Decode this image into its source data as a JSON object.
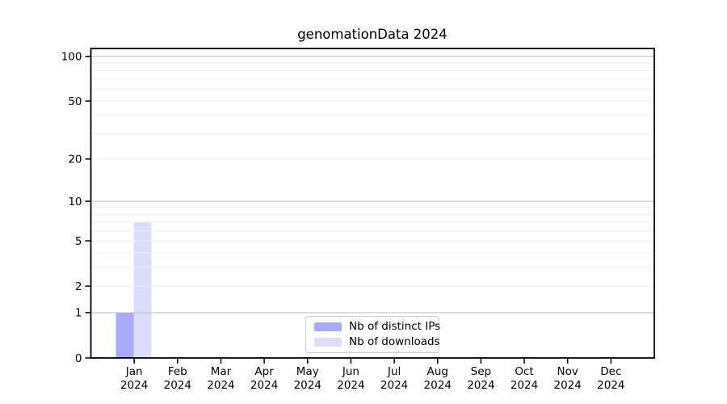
{
  "chart_data": {
    "type": "bar",
    "title": "genomationData 2024",
    "x": {
      "months": [
        "Jan",
        "Feb",
        "Mar",
        "Apr",
        "May",
        "Jun",
        "Jul",
        "Aug",
        "Sep",
        "Oct",
        "Nov",
        "Dec"
      ],
      "year": "2024"
    },
    "y_axis": {
      "scale": "log10(1+v)",
      "tick_values": [
        0,
        1,
        2,
        5,
        10,
        20,
        50,
        100
      ],
      "major_gridlines": [
        1,
        10,
        100
      ],
      "minor_gridlines": [
        2,
        3,
        4,
        5,
        6,
        7,
        8,
        9,
        20,
        30,
        40,
        50,
        60,
        70,
        80,
        90
      ],
      "ylim": [
        0,
        113
      ]
    },
    "series": [
      {
        "name": "Nb of distinct IPs",
        "color": "#a9aaf8",
        "values": [
          1,
          0,
          0,
          0,
          0,
          0,
          0,
          0,
          0,
          0,
          0,
          0
        ]
      },
      {
        "name": "Nb of downloads",
        "color": "#dcddfa",
        "values": [
          7,
          0,
          0,
          0,
          0,
          0,
          0,
          0,
          0,
          0,
          0,
          0
        ]
      }
    ],
    "legend": {
      "position": "bottom-center"
    },
    "colors": {
      "axis": "#000000",
      "text": "#000000",
      "major_grid": "#bdbdbd",
      "minor_grid": "#ededed",
      "legend_border": "#cccccc",
      "background": "#ffffff"
    }
  }
}
